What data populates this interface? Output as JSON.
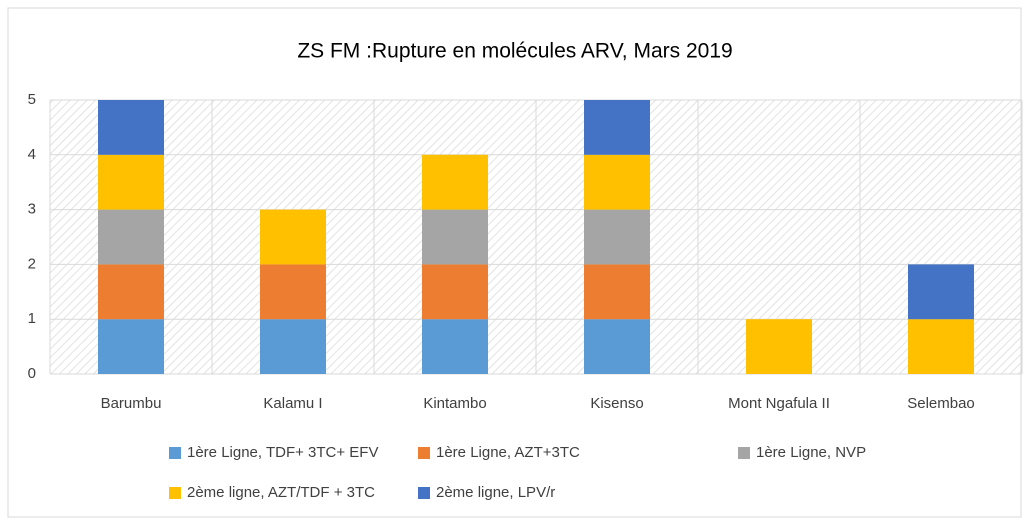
{
  "chart_data": {
    "type": "stacked_bar",
    "title": "ZS FM :Rupture en molécules ARV, Mars 2019",
    "categories": [
      "Barumbu",
      "Kalamu I",
      "Kintambo",
      "Kisenso",
      "Mont Ngafula II",
      "Selembao"
    ],
    "series": [
      {
        "name": "1ère Ligne, TDF+ 3TC+ EFV",
        "color": "#5b9bd5",
        "values": [
          1,
          1,
          1,
          1,
          0,
          0
        ]
      },
      {
        "name": "1ère Ligne, AZT+3TC",
        "color": "#ed7d31",
        "values": [
          1,
          1,
          1,
          1,
          0,
          0
        ]
      },
      {
        "name": "1ère Ligne, NVP",
        "color": "#a5a5a5",
        "values": [
          1,
          0,
          1,
          1,
          0,
          0
        ]
      },
      {
        "name": "2ème ligne, AZT/TDF + 3TC",
        "color": "#ffc000",
        "values": [
          1,
          1,
          1,
          1,
          1,
          1
        ]
      },
      {
        "name": "2ème ligne, LPV/r",
        "color": "#4472c4",
        "values": [
          1,
          0,
          0,
          1,
          0,
          1
        ]
      }
    ],
    "ylim": [
      0,
      5
    ],
    "yticks": [
      0,
      1,
      2,
      3,
      4,
      5
    ],
    "grid": true,
    "legend": "bottom"
  }
}
